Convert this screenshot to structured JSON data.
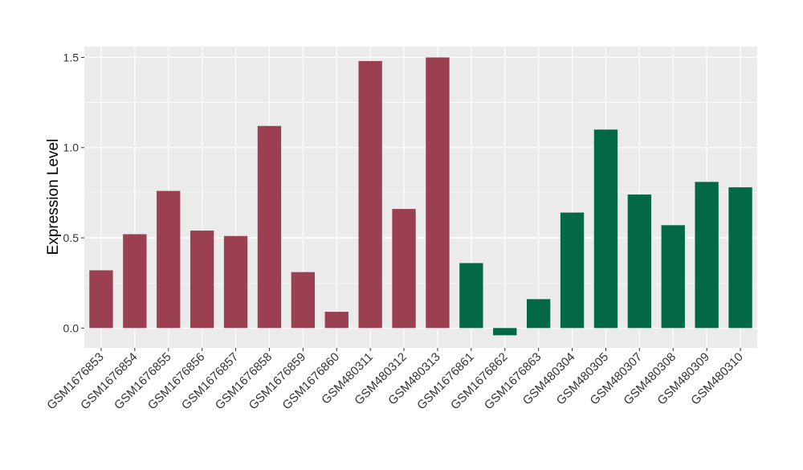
{
  "chart_data": {
    "type": "bar",
    "title": "",
    "xlabel": "",
    "ylabel": "Expression Level",
    "ylim": [
      -0.11,
      1.56
    ],
    "yticks": [
      0.0,
      0.5,
      1.0,
      1.5
    ],
    "ytick_labels": [
      "0.0",
      "0.5",
      "1.0",
      "1.5"
    ],
    "grid": true,
    "legend": "none",
    "colors": {
      "group1": "#9A4050",
      "group2": "#036846",
      "panel_bg": "#EBEBEB",
      "grid": "#FFFFFF"
    },
    "categories": [
      "GSM1676853",
      "GSM1676854",
      "GSM1676855",
      "GSM1676856",
      "GSM1676857",
      "GSM1676858",
      "GSM1676859",
      "GSM1676860",
      "GSM480311",
      "GSM480312",
      "GSM480313",
      "GSM1676861",
      "GSM1676862",
      "GSM1676863",
      "GSM480304",
      "GSM480305",
      "GSM480307",
      "GSM480308",
      "GSM480309",
      "GSM480310"
    ],
    "values": [
      0.32,
      0.52,
      0.76,
      0.54,
      0.51,
      1.12,
      0.31,
      0.09,
      1.48,
      0.66,
      1.5,
      0.36,
      -0.04,
      0.16,
      0.64,
      1.1,
      0.74,
      0.57,
      0.81,
      0.78
    ],
    "groups": [
      1,
      1,
      1,
      1,
      1,
      1,
      1,
      1,
      1,
      1,
      1,
      2,
      2,
      2,
      2,
      2,
      2,
      2,
      2,
      2
    ]
  }
}
